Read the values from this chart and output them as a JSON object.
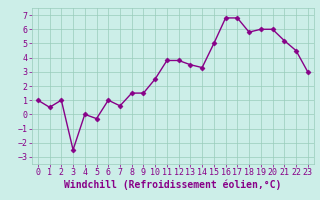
{
  "x": [
    0,
    1,
    2,
    3,
    4,
    5,
    6,
    7,
    8,
    9,
    10,
    11,
    12,
    13,
    14,
    15,
    16,
    17,
    18,
    19,
    20,
    21,
    22,
    23
  ],
  "y": [
    1.0,
    0.5,
    1.0,
    -2.5,
    0.0,
    -0.3,
    1.0,
    0.6,
    1.5,
    1.5,
    2.5,
    3.8,
    3.8,
    3.5,
    3.3,
    5.0,
    6.8,
    6.8,
    5.8,
    6.0,
    6.0,
    5.2,
    4.5,
    3.0
  ],
  "line_color": "#880088",
  "markersize": 2.5,
  "linewidth": 1.0,
  "xlabel": "Windchill (Refroidissement éolien,°C)",
  "xlim": [
    -0.5,
    23.5
  ],
  "ylim": [
    -3.5,
    7.5
  ],
  "yticks": [
    -3,
    -2,
    -1,
    0,
    1,
    2,
    3,
    4,
    5,
    6,
    7
  ],
  "xticks": [
    0,
    1,
    2,
    3,
    4,
    5,
    6,
    7,
    8,
    9,
    10,
    11,
    12,
    13,
    14,
    15,
    16,
    17,
    18,
    19,
    20,
    21,
    22,
    23
  ],
  "grid_color": "#99ccbb",
  "bg_color": "#cceee8",
  "font_color": "#880088",
  "xlabel_fontsize": 7.0,
  "tick_fontsize": 6.0
}
